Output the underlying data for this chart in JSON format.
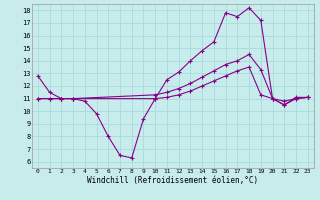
{
  "background_color": "#c8ecec",
  "grid_color": "#aadddd",
  "line_color": "#880088",
  "xlabel": "Windchill (Refroidissement éolien,°C)",
  "xlim": [
    -0.5,
    23.5
  ],
  "ylim": [
    5.5,
    18.5
  ],
  "xticks": [
    0,
    1,
    2,
    3,
    4,
    5,
    6,
    7,
    8,
    9,
    10,
    11,
    12,
    13,
    14,
    15,
    16,
    17,
    18,
    19,
    20,
    21,
    22,
    23
  ],
  "yticks": [
    6,
    7,
    8,
    9,
    10,
    11,
    12,
    13,
    14,
    15,
    16,
    17,
    18
  ],
  "curve1_x": [
    0,
    1,
    2,
    3,
    4,
    5,
    6,
    7,
    8,
    9,
    10,
    11,
    12,
    13,
    14,
    15,
    16,
    17,
    18,
    19,
    20,
    21,
    22,
    23
  ],
  "curve1_y": [
    12.8,
    11.5,
    11.0,
    11.0,
    10.8,
    9.8,
    8.0,
    6.5,
    6.3,
    9.4,
    11.0,
    12.5,
    13.1,
    14.0,
    14.8,
    15.5,
    17.8,
    17.5,
    18.2,
    17.2,
    11.0,
    10.5,
    11.1,
    11.1
  ],
  "curve2_x": [
    0,
    1,
    2,
    3,
    10,
    11,
    12,
    13,
    14,
    15,
    16,
    17,
    18,
    19,
    20,
    21,
    22,
    23
  ],
  "curve2_y": [
    11.0,
    11.0,
    11.0,
    11.0,
    11.3,
    11.5,
    11.8,
    12.2,
    12.7,
    13.2,
    13.7,
    14.0,
    14.5,
    13.3,
    11.0,
    10.5,
    11.0,
    11.1
  ],
  "curve3_x": [
    0,
    1,
    2,
    3,
    10,
    11,
    12,
    13,
    14,
    15,
    16,
    17,
    18,
    19,
    20,
    21,
    22,
    23
  ],
  "curve3_y": [
    11.0,
    11.0,
    11.0,
    11.0,
    11.0,
    11.1,
    11.3,
    11.6,
    12.0,
    12.4,
    12.8,
    13.2,
    13.5,
    11.3,
    11.0,
    10.8,
    11.0,
    11.1
  ]
}
